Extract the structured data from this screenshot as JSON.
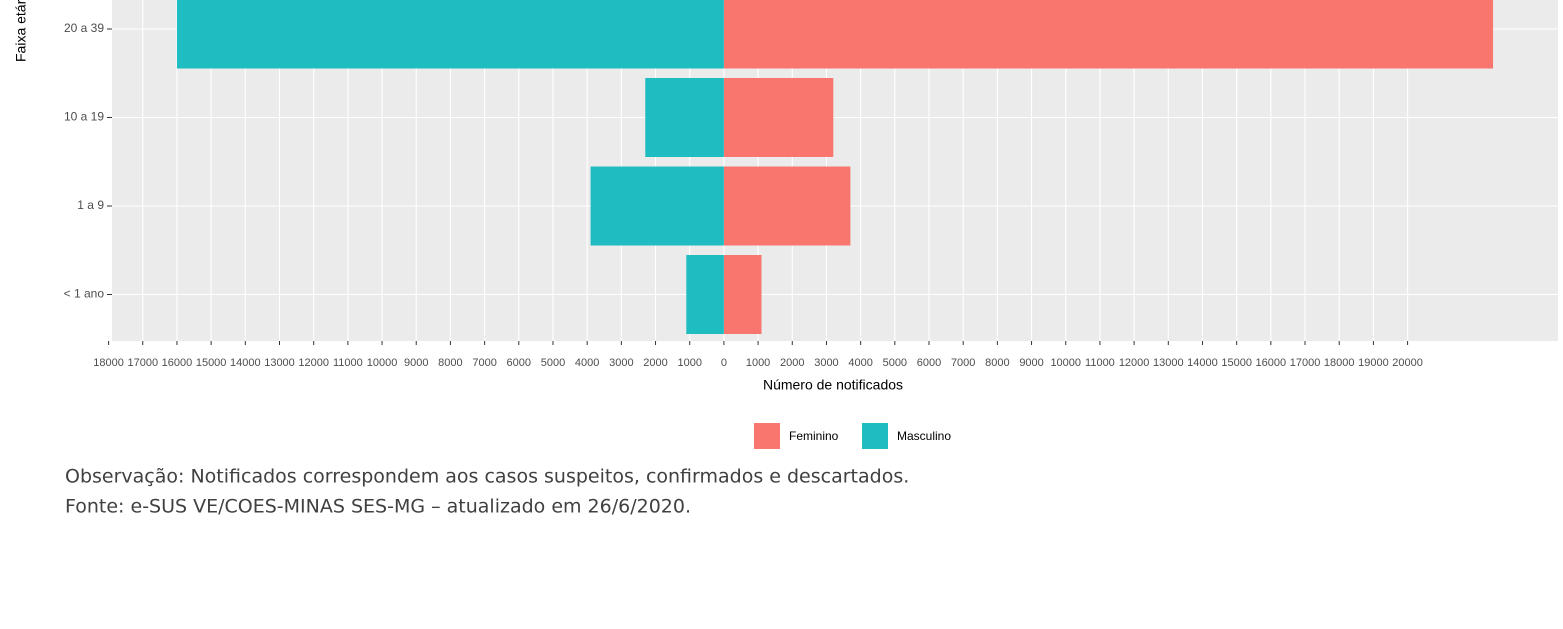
{
  "chart_data": {
    "type": "bar",
    "orientation": "horizontal",
    "x_label": "Número de notificados",
    "y_label": "Faixa etária",
    "categories": [
      "20 a 39",
      "10 a 19",
      "1 a 9",
      "< 1 ano"
    ],
    "series": [
      {
        "name": "Feminino",
        "color": "#f8766d",
        "values": [
          22500,
          3200,
          3700,
          1100
        ]
      },
      {
        "name": "Masculino",
        "color": "#1fbdc1",
        "values": [
          -16000,
          -2300,
          -3900,
          -1100
        ]
      }
    ],
    "xlim": [
      -17900,
      24400
    ],
    "xticks": [
      {
        "value": -18000,
        "label": "18000"
      },
      {
        "value": -17000,
        "label": "17000"
      },
      {
        "value": -16000,
        "label": "16000"
      },
      {
        "value": -15000,
        "label": "15000"
      },
      {
        "value": -14000,
        "label": "14000"
      },
      {
        "value": -13000,
        "label": "13000"
      },
      {
        "value": -12000,
        "label": "12000"
      },
      {
        "value": -11000,
        "label": "11000"
      },
      {
        "value": -10000,
        "label": "10000"
      },
      {
        "value": -9000,
        "label": "9000"
      },
      {
        "value": -8000,
        "label": "8000"
      },
      {
        "value": -7000,
        "label": "7000"
      },
      {
        "value": -6000,
        "label": "6000"
      },
      {
        "value": -5000,
        "label": "5000"
      },
      {
        "value": -4000,
        "label": "4000"
      },
      {
        "value": -3000,
        "label": "3000"
      },
      {
        "value": -2000,
        "label": "2000"
      },
      {
        "value": -1000,
        "label": "1000"
      },
      0,
      1000,
      2000,
      3000,
      4000,
      5000,
      6000,
      7000,
      8000,
      9000,
      10000,
      11000,
      12000,
      13000,
      14000,
      15000,
      16000,
      17000,
      18000,
      19000,
      20000
    ],
    "grid": true,
    "legend": "bottom",
    "notes": [
      "Observação: Notificados correspondem aos casos suspeitos, confirmados e descartados.",
      "Fonte: e-SUS VE/COES-MINAS SES-MG – atualizado em 26/6/2020."
    ]
  }
}
